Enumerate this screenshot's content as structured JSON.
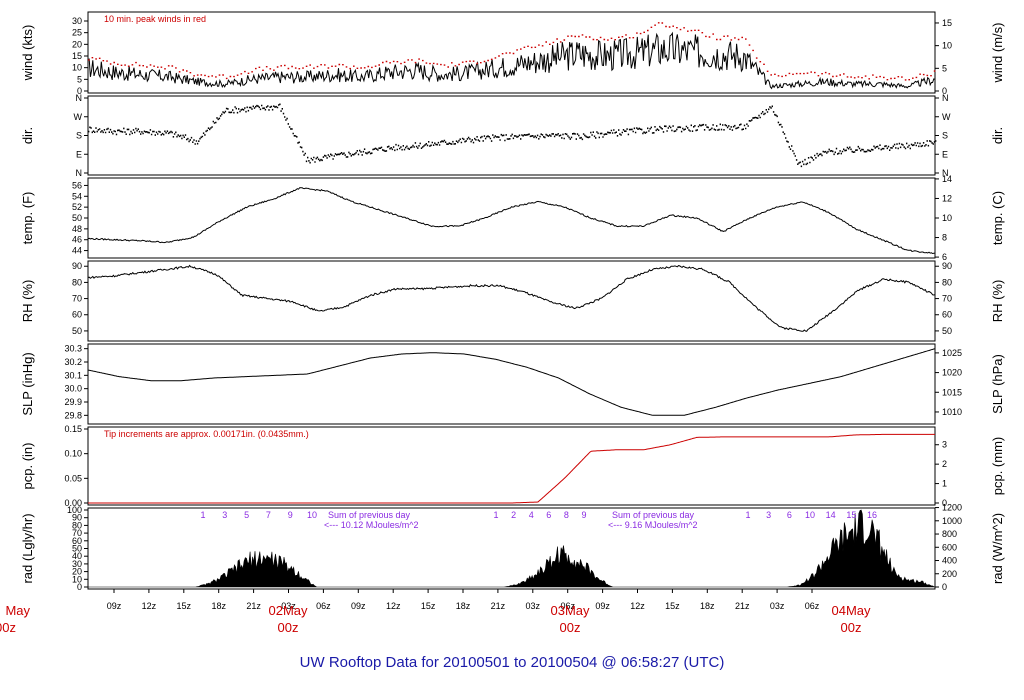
{
  "page": {
    "title": "UW Rooftop Data for 20100501  to  20100504 @ 06:58:27  (UTC)"
  },
  "chart_data": {
    "type": "line",
    "x_axis": {
      "tick_labels": [
        "09z",
        "12z",
        "15z",
        "18z",
        "21z",
        "03z",
        "06z",
        "09z",
        "12z",
        "15z",
        "18z",
        "21z",
        "03z",
        "06z",
        "09z",
        "12z",
        "15z",
        "18z",
        "21z",
        "03z",
        "06z"
      ],
      "day_labels": [
        {
          "month_day": "May",
          "hour": "00z",
          "clip_left": true
        },
        {
          "month_day": "02May",
          "hour": "00z"
        },
        {
          "month_day": "03May",
          "hour": "00z"
        },
        {
          "month_day": "04May",
          "hour": "00z"
        }
      ]
    },
    "panels": [
      {
        "id": "wind",
        "ylabel_left": "wind (kts)",
        "ylabel_right": "wind (m/s)",
        "left_ticks": [
          "0",
          "5",
          "10",
          "15",
          "20",
          "25",
          "30"
        ],
        "right_ticks": [
          "0",
          "5",
          "10",
          "15"
        ],
        "ylim": [
          0,
          33
        ],
        "annotation": "10 min. peak winds in red",
        "series": [
          {
            "color": "#000000",
            "values": [
              10,
              8,
              7,
              6,
              4,
              3,
              5,
              6,
              6,
              7,
              6,
              8,
              9,
              7,
              8,
              10,
              12,
              14,
              16,
              15,
              16,
              18,
              17,
              16,
              15,
              2,
              3,
              4,
              3,
              3,
              2,
              5
            ]
          },
          {
            "color": "#cc0000",
            "values": [
              14,
              12,
              11,
              10,
              7,
              6,
              9,
              10,
              10,
              11,
              10,
              12,
              13,
              11,
              12,
              15,
              18,
              21,
              24,
              22,
              24,
              29,
              26,
              23,
              22,
              6,
              8,
              7,
              6,
              6,
              5,
              8
            ]
          }
        ]
      },
      {
        "id": "dir",
        "ylabel_left": "dir.",
        "ylabel_right": "dir.",
        "left_ticks": [
          "N",
          "E",
          "S",
          "W",
          "N"
        ],
        "right_ticks": [
          "N",
          "E",
          "S",
          "W",
          "N"
        ],
        "ylim": [
          0,
          360
        ],
        "series": [
          {
            "color": "#000000",
            "values": [
              210,
              200,
              200,
              190,
              150,
              300,
              310,
              320,
              60,
              80,
              100,
              120,
              130,
              145,
              160,
              170,
              175,
              180,
              175,
              190,
              200,
              210,
              215,
              220,
              220,
              320,
              40,
              100,
              110,
              120,
              130,
              150
            ]
          }
        ]
      },
      {
        "id": "temp",
        "ylabel_left": "temp. (F)",
        "ylabel_right": "temp. (C)",
        "left_ticks": [
          "44",
          "46",
          "48",
          "50",
          "52",
          "54",
          "56"
        ],
        "right_ticks": [
          "6",
          "8",
          "10",
          "12",
          "14"
        ],
        "ylim": [
          43,
          57
        ],
        "series": [
          {
            "color": "#000000",
            "values": [
              46.2,
              46,
              45.8,
              45.5,
              46.5,
              49.5,
              52,
              53.5,
              55.5,
              55,
              53,
              51.5,
              50,
              48.5,
              48.5,
              50,
              52,
              53,
              52,
              50,
              48.5,
              48.5,
              50.5,
              50,
              47.5,
              50,
              52,
              53,
              51,
              48,
              46,
              44,
              43.5
            ]
          }
        ]
      },
      {
        "id": "rh",
        "ylabel_left": "RH (%)",
        "ylabel_right": "RH (%)",
        "left_ticks": [
          "50",
          "60",
          "70",
          "80",
          "90"
        ],
        "right_ticks": [
          "50",
          "60",
          "70",
          "80",
          "90"
        ],
        "ylim": [
          45,
          92
        ],
        "series": [
          {
            "color": "#000000",
            "values": [
              83,
              84,
              86,
              88,
              90,
              85,
              72,
              70,
              68,
              62,
              65,
              72,
              76,
              76,
              77,
              78,
              78,
              74,
              68,
              64,
              70,
              82,
              88,
              90,
              88,
              80,
              65,
              52,
              50,
              62,
              75,
              82,
              80,
              72
            ]
          }
        ]
      },
      {
        "id": "slp",
        "ylabel_left": "SLP (inHg)",
        "ylabel_right": "SLP (hPa)",
        "left_ticks": [
          "29.8",
          "29.9",
          "30.0",
          "30.1",
          "30.2",
          "30.3"
        ],
        "right_ticks": [
          "1010",
          "1015",
          "1020",
          "1025"
        ],
        "ylim": [
          29.75,
          30.32
        ],
        "series": [
          {
            "color": "#000000",
            "values": [
              30.14,
              30.09,
              30.06,
              30.06,
              30.08,
              30.09,
              30.1,
              30.11,
              30.17,
              30.23,
              30.26,
              30.27,
              30.26,
              30.22,
              30.16,
              30.08,
              29.96,
              29.86,
              29.8,
              29.8,
              29.86,
              29.93,
              29.99,
              30.04,
              30.09,
              30.16,
              30.23,
              30.3
            ]
          }
        ]
      },
      {
        "id": "pcp",
        "ylabel_left": "pcp. (in)",
        "ylabel_right": "pcp. (mm)",
        "left_ticks": [
          "0.00",
          "0.05",
          "0.10",
          "0.15"
        ],
        "right_ticks": [
          "0",
          "1",
          "2",
          "3"
        ],
        "ylim": [
          0,
          0.15
        ],
        "annotation": "Tip increments are approx. 0.00171in. (0.0435mm.)",
        "series": [
          {
            "color": "#cc0000",
            "values": [
              0,
              0,
              0,
              0,
              0,
              0,
              0,
              0,
              0,
              0,
              0,
              0,
              0,
              0,
              0,
              0,
              0,
              0.002,
              0.05,
              0.105,
              0.108,
              0.108,
              0.118,
              0.133,
              0.134,
              0.134,
              0.134,
              0.134,
              0.134,
              0.138,
              0.139,
              0.139,
              0.139
            ]
          }
        ]
      },
      {
        "id": "rad",
        "ylabel_left": "rad (Lgly/hr)",
        "ylabel_right": "rad (W/m^2)",
        "left_ticks": [
          "0",
          "10",
          "20",
          "30",
          "40",
          "50",
          "60",
          "70",
          "80",
          "90",
          "100"
        ],
        "right_ticks": [
          "0",
          "200",
          "400",
          "600",
          "800",
          "1000",
          "1200"
        ],
        "ylim": [
          0,
          100
        ],
        "type": "area",
        "hour_labels": [
          {
            "day": 1,
            "labels": [
              "1",
              "3",
              "5",
              "7",
              "9",
              "10"
            ]
          },
          {
            "day": 2,
            "labels": [
              "1",
              "2",
              "4",
              "6",
              "8",
              "9"
            ]
          },
          {
            "day": 3,
            "labels": [
              "1",
              "3",
              "6",
              "10",
              "14",
              "15",
              "16"
            ]
          }
        ],
        "daily_sum_label": "Sum of previous day",
        "daily_sums": [
          "<--- 10.12 MJoules/m^2",
          "<--- 9.16 MJoules/m^2"
        ],
        "series": [
          {
            "color": "#000000",
            "values": [
              0,
              0,
              0,
              0,
              0,
              0,
              0,
              0,
              0,
              5,
              15,
              28,
              40,
              45,
              40,
              30,
              15,
              0,
              0,
              0,
              0,
              0,
              0,
              0,
              0,
              0,
              0,
              0,
              0,
              0,
              0,
              0,
              4,
              15,
              30,
              50,
              45,
              30,
              12,
              0,
              0,
              0,
              0,
              0,
              0,
              0,
              0,
              0,
              0,
              0,
              0,
              0,
              0,
              3,
              18,
              45,
              70,
              85,
              95,
              60,
              20,
              10,
              8,
              0
            ]
          }
        ]
      }
    ]
  }
}
